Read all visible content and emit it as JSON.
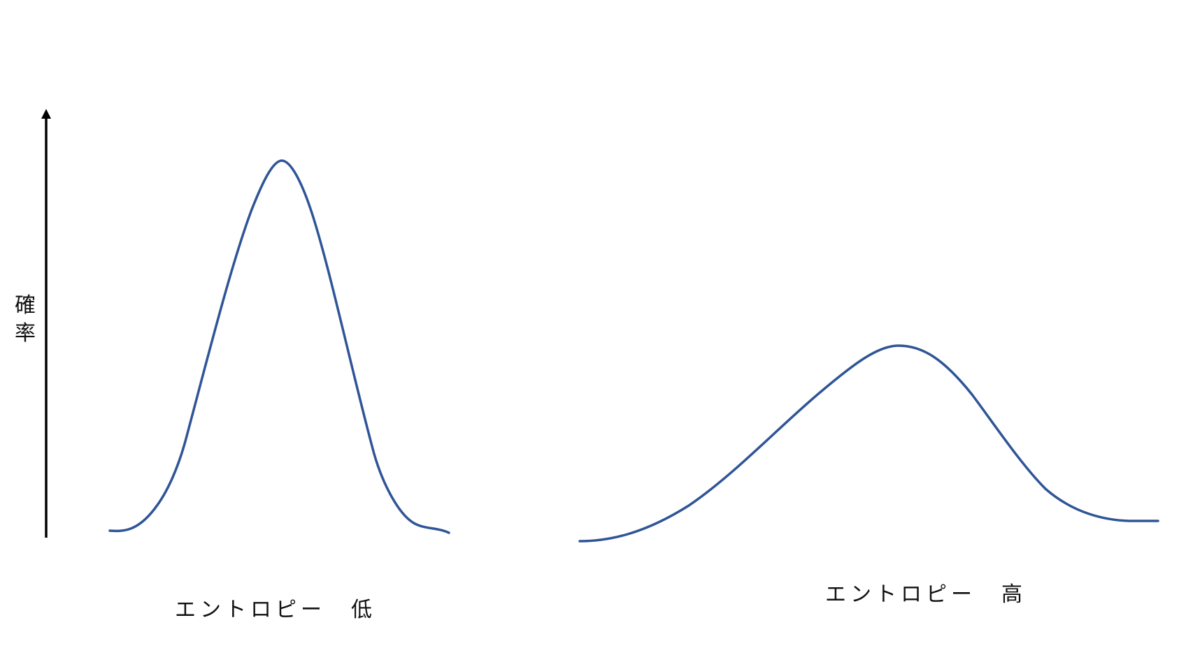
{
  "y_axis": {
    "label": "確率"
  },
  "curves": [
    {
      "caption": "エントロピー　低",
      "color": "#2F5597"
    },
    {
      "caption": "エントロピー　高",
      "color": "#2F5597"
    }
  ],
  "axis_color": "#000000"
}
